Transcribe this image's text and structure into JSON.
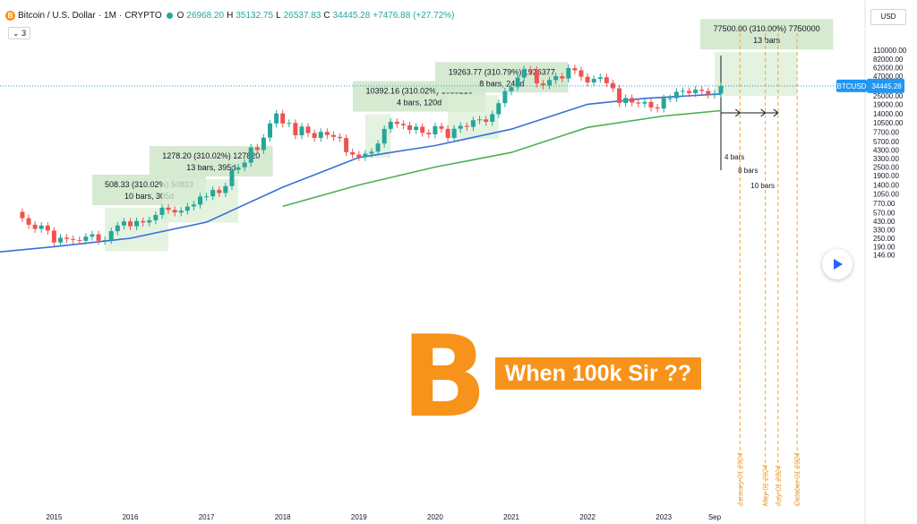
{
  "header": {
    "coin_glyph": "B",
    "symbol": "Bitcoin / U.S. Dollar",
    "interval": "1M",
    "exchange": "CRYPTO",
    "open_label": "O",
    "open_value": "26968.20",
    "high_label": "H",
    "high_value": "35132.75",
    "low_label": "L",
    "low_value": "26537.83",
    "close_label": "C",
    "close_value": "34445.28",
    "change": "+7476.88 (+27.72%)",
    "indicator_count": "3",
    "currency": "USD"
  },
  "watermark": {
    "glyph": "B",
    "banner": "When 100k Sir ??",
    "color": "#f7931a"
  },
  "colors": {
    "up": "#26a69a",
    "down": "#ef5350",
    "ma_fast": "#3a6fd8",
    "ma_slow": "#4caf50",
    "box_fill": "#d9efd6",
    "price_tag": "#2196f3",
    "projection": "#f0a430"
  },
  "chart_data": {
    "type": "candlestick",
    "scale": "log",
    "interval": "1M",
    "y_ticks": [
      "110000.00",
      "82000.00",
      "62000.00",
      "47000.00",
      "34445.28",
      "25000.00",
      "19000.00",
      "14000.00",
      "10500.00",
      "7700.00",
      "5700.00",
      "4300.00",
      "3300.00",
      "2500.00",
      "1900.00",
      "1400.00",
      "1050.00",
      "770.00",
      "570.00",
      "430.00",
      "330.00",
      "250.00",
      "190.00",
      "146.00"
    ],
    "x_ticks": [
      "2015",
      "2016",
      "2017",
      "2018",
      "2019",
      "2020",
      "2021",
      "2022",
      "2023",
      "Sep"
    ],
    "last_price": {
      "symbol": "BTCUSD",
      "value": "34445.28"
    },
    "closes": [
      [
        "2014-07",
        587
      ],
      [
        "2014-08",
        478
      ],
      [
        "2014-09",
        387
      ],
      [
        "2014-10",
        338
      ],
      [
        "2014-11",
        376
      ],
      [
        "2014-12",
        320
      ],
      [
        "2015-01",
        218
      ],
      [
        "2015-02",
        254
      ],
      [
        "2015-03",
        244
      ],
      [
        "2015-04",
        236
      ],
      [
        "2015-05",
        230
      ],
      [
        "2015-06",
        263
      ],
      [
        "2015-07",
        284
      ],
      [
        "2015-08",
        230
      ],
      [
        "2015-09",
        236
      ],
      [
        "2015-10",
        314
      ],
      [
        "2015-11",
        378
      ],
      [
        "2015-12",
        430
      ],
      [
        "2016-01",
        368
      ],
      [
        "2016-02",
        436
      ],
      [
        "2016-03",
        416
      ],
      [
        "2016-04",
        448
      ],
      [
        "2016-05",
        531
      ],
      [
        "2016-06",
        673
      ],
      [
        "2016-07",
        624
      ],
      [
        "2016-08",
        575
      ],
      [
        "2016-09",
        609
      ],
      [
        "2016-10",
        698
      ],
      [
        "2016-11",
        742
      ],
      [
        "2016-12",
        963
      ],
      [
        "2017-01",
        970
      ],
      [
        "2017-02",
        1190
      ],
      [
        "2017-03",
        1079
      ],
      [
        "2017-04",
        1348
      ],
      [
        "2017-05",
        2286
      ],
      [
        "2017-06",
        2480
      ],
      [
        "2017-07",
        2875
      ],
      [
        "2017-08",
        4703
      ],
      [
        "2017-09",
        4338
      ],
      [
        "2017-10",
        6468
      ],
      [
        "2017-11",
        10233
      ],
      [
        "2017-12",
        14156
      ],
      [
        "2018-01",
        10221
      ],
      [
        "2018-02",
        10397
      ],
      [
        "2018-03",
        6973
      ],
      [
        "2018-04",
        9240
      ],
      [
        "2018-05",
        7494
      ],
      [
        "2018-06",
        6404
      ],
      [
        "2018-07",
        7780
      ],
      [
        "2018-08",
        7037
      ],
      [
        "2018-09",
        6626
      ],
      [
        "2018-10",
        6371
      ],
      [
        "2018-11",
        4041
      ],
      [
        "2018-12",
        3742
      ],
      [
        "2019-01",
        3457
      ],
      [
        "2019-02",
        3854
      ],
      [
        "2019-03",
        4105
      ],
      [
        "2019-04",
        5350
      ],
      [
        "2019-05",
        8574
      ],
      [
        "2019-06",
        10817
      ],
      [
        "2019-07",
        10085
      ],
      [
        "2019-08",
        9630
      ],
      [
        "2019-09",
        8293
      ],
      [
        "2019-10",
        9199
      ],
      [
        "2019-11",
        7569
      ],
      [
        "2019-12",
        7193
      ],
      [
        "2020-01",
        9350
      ],
      [
        "2020-02",
        8599
      ],
      [
        "2020-03",
        6424
      ],
      [
        "2020-04",
        8624
      ],
      [
        "2020-05",
        9454
      ],
      [
        "2020-06",
        9138
      ],
      [
        "2020-07",
        11351
      ],
      [
        "2020-08",
        11655
      ],
      [
        "2020-09",
        10779
      ],
      [
        "2020-10",
        13804
      ],
      [
        "2020-11",
        19700
      ],
      [
        "2020-12",
        28990
      ],
      [
        "2021-01",
        33114
      ],
      [
        "2021-02",
        45137
      ],
      [
        "2021-03",
        58918
      ],
      [
        "2021-04",
        57750
      ],
      [
        "2021-05",
        37332
      ],
      [
        "2021-06",
        35041
      ],
      [
        "2021-07",
        41626
      ],
      [
        "2021-08",
        47155
      ],
      [
        "2021-09",
        43790
      ],
      [
        "2021-10",
        61318
      ],
      [
        "2021-11",
        57005
      ],
      [
        "2021-12",
        46306
      ],
      [
        "2022-01",
        38483
      ],
      [
        "2022-02",
        43193
      ],
      [
        "2022-03",
        45538
      ],
      [
        "2022-04",
        37644
      ],
      [
        "2022-05",
        31792
      ],
      [
        "2022-06",
        19785
      ],
      [
        "2022-07",
        23336
      ],
      [
        "2022-08",
        20050
      ],
      [
        "2022-09",
        19423
      ],
      [
        "2022-10",
        20496
      ],
      [
        "2022-11",
        17168
      ],
      [
        "2022-12",
        16548
      ],
      [
        "2023-01",
        23139
      ],
      [
        "2023-02",
        23147
      ],
      [
        "2023-03",
        28478
      ],
      [
        "2023-04",
        29268
      ],
      [
        "2023-05",
        27220
      ],
      [
        "2023-06",
        30477
      ],
      [
        "2023-07",
        29230
      ],
      [
        "2023-08",
        25931
      ],
      [
        "2023-09",
        26968
      ],
      [
        "2023-10",
        34445
      ]
    ],
    "moving_averages": [
      {
        "color": "#3a6fd8",
        "points": [
          [
            "2014-01",
            150
          ],
          [
            "2015-01",
            190
          ],
          [
            "2016-01",
            250
          ],
          [
            "2017-01",
            420
          ],
          [
            "2018-01",
            1300
          ],
          [
            "2019-01",
            3400
          ],
          [
            "2020-01",
            5000
          ],
          [
            "2021-01",
            8500
          ],
          [
            "2022-01",
            19000
          ],
          [
            "2022-10",
            23000
          ],
          [
            "2023-10",
            26500
          ]
        ]
      },
      {
        "color": "#4caf50",
        "points": [
          [
            "2018-01",
            700
          ],
          [
            "2019-01",
            1400
          ],
          [
            "2020-01",
            2500
          ],
          [
            "2021-01",
            4000
          ],
          [
            "2022-01",
            9000
          ],
          [
            "2023-01",
            13000
          ],
          [
            "2023-10",
            15500
          ]
        ]
      }
    ],
    "annotations": [
      {
        "line1": "508.33 (310.02%) 50833",
        "line2": "10 bars, 305d",
        "from": "2015-09",
        "to": "2016-07",
        "low": 164,
        "high": 668
      },
      {
        "line1": "1278.20 (310.02%) 127820",
        "line2": "13 bars, 395d",
        "from": "2016-06",
        "to": "2017-06",
        "low": 413,
        "high": 1685
      },
      {
        "line1": "10392.16 (310.02%) 1039216",
        "line2": "4 bars, 120d",
        "from": "2019-02",
        "to": "2019-06",
        "low": 3352,
        "high": 13744
      },
      {
        "line1": "19263.77 (310.79%) 1926377",
        "line2": "8 bars, 244d",
        "from": "2020-03",
        "to": "2020-11",
        "low": 6198,
        "high": 25462
      },
      {
        "line1": "77500.00 (310.00%) 7750000",
        "line2": "13 bars",
        "from": "2023-09",
        "to": "2024-10",
        "low": 25000,
        "high": 102500
      }
    ],
    "bar_labels": [
      "4 bars",
      "8 bars",
      "10 bars"
    ],
    "projection_dates": [
      "January 01 2024",
      "May 01 2024",
      "July 01 2024",
      "October 01 2024"
    ]
  }
}
